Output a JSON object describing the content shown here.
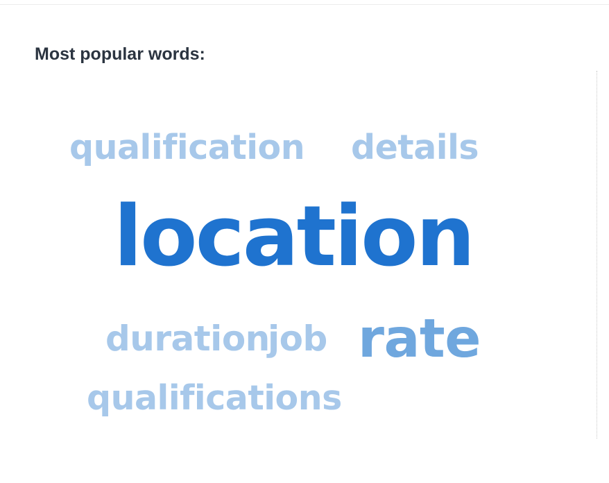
{
  "heading": "Most popular words:",
  "words": {
    "qualification": "qualification",
    "details": "details",
    "location": "location",
    "duration": "duration",
    "job": "job",
    "rate": "rate",
    "qualifications": "qualifications"
  },
  "colors": {
    "heading": "#2b3440",
    "word_light": "#a7c8ea",
    "word_mid": "#6fa7de",
    "word_dark": "#1f73cf"
  }
}
